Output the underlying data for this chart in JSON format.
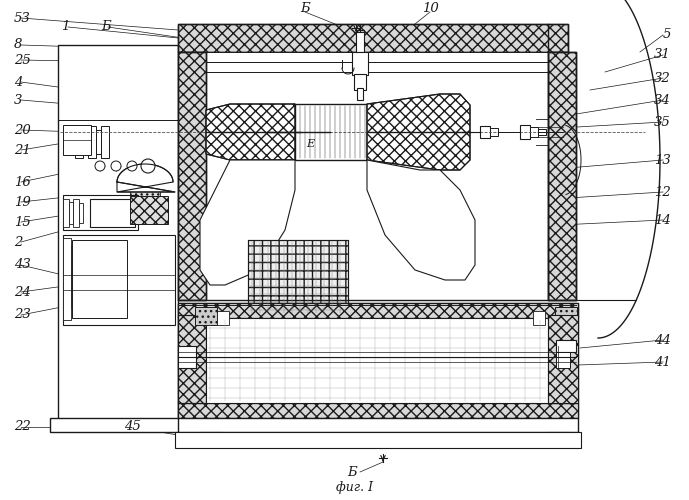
{
  "figsize": [
    6.89,
    5.0
  ],
  "dpi": 100,
  "bg": "#ffffff",
  "lc": "#1a1a1a",
  "caption": "фиг. I",
  "left_labels": [
    [
      "53",
      8,
      482
    ],
    [
      "1",
      55,
      473
    ],
    [
      "Б",
      95,
      473
    ],
    [
      "8",
      8,
      455
    ],
    [
      "25",
      8,
      440
    ],
    [
      "4",
      8,
      418
    ],
    [
      "3",
      8,
      400
    ],
    [
      "20",
      8,
      370
    ],
    [
      "21",
      8,
      350
    ],
    [
      "16",
      8,
      318
    ],
    [
      "19",
      8,
      298
    ],
    [
      "15",
      8,
      278
    ],
    [
      "2",
      8,
      258
    ],
    [
      "43",
      8,
      235
    ],
    [
      "24",
      8,
      208
    ],
    [
      "23",
      8,
      185
    ],
    [
      "22",
      8,
      73
    ],
    [
      "45",
      118,
      73
    ]
  ],
  "right_labels": [
    [
      "5",
      678,
      465
    ],
    [
      "31",
      678,
      445
    ],
    [
      "32",
      678,
      422
    ],
    [
      "34",
      678,
      400
    ],
    [
      "35",
      678,
      378
    ],
    [
      "13",
      678,
      340
    ],
    [
      "12",
      678,
      308
    ],
    [
      "14",
      678,
      280
    ],
    [
      "44",
      678,
      160
    ],
    [
      "41",
      678,
      138
    ]
  ],
  "top_labels": [
    [
      "Б",
      305,
      492
    ],
    [
      "10",
      430,
      492
    ]
  ]
}
